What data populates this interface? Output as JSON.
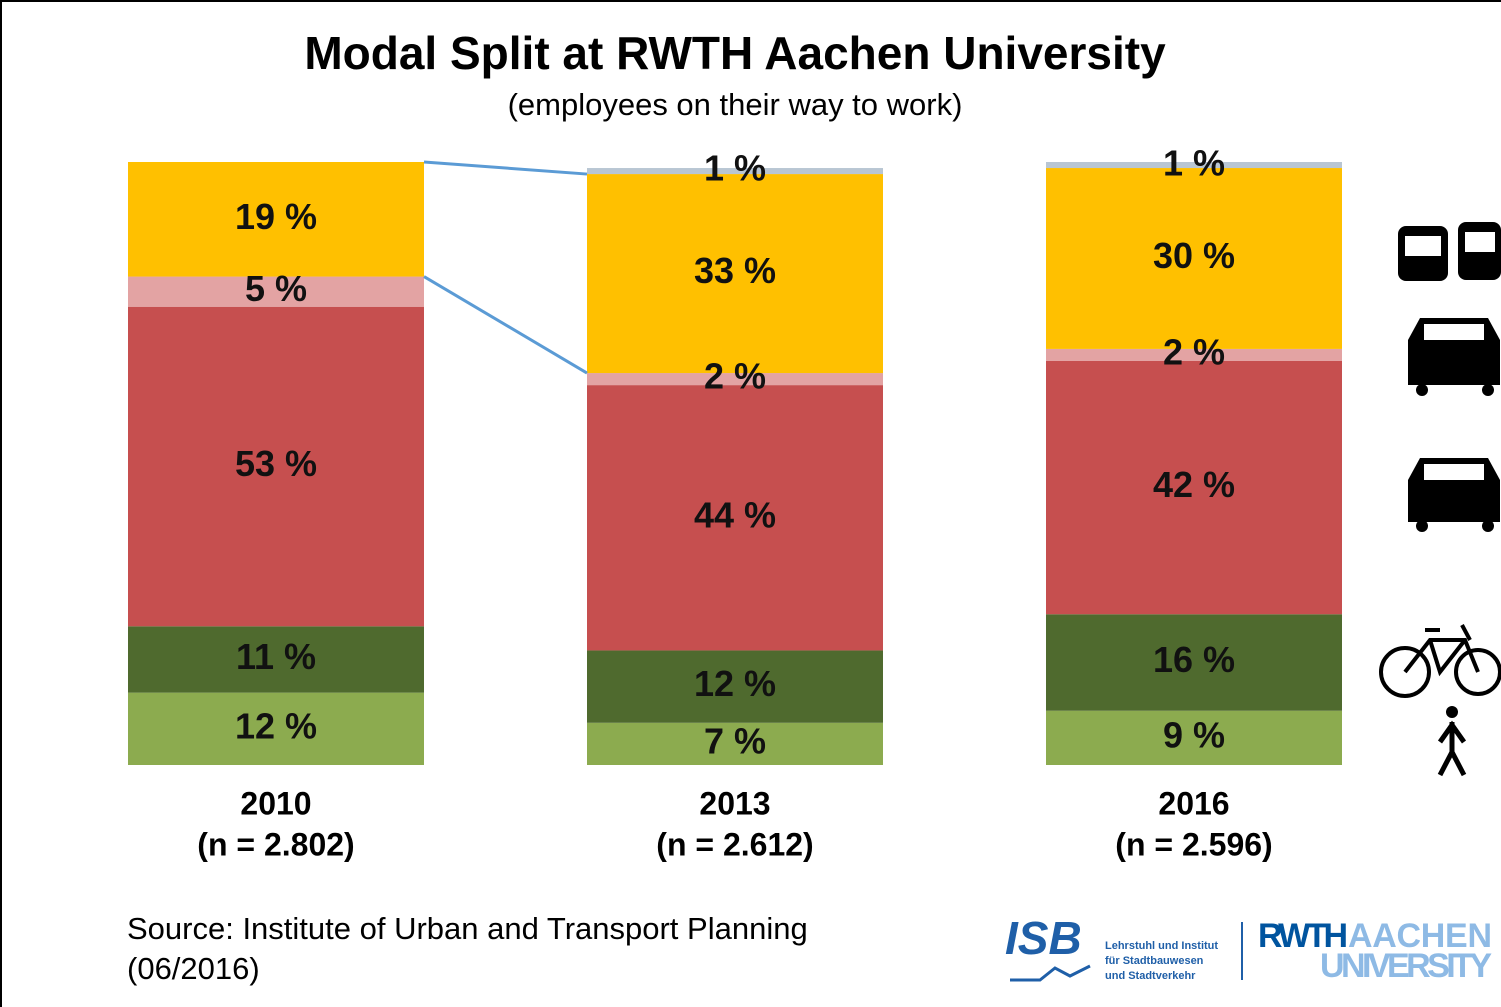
{
  "chart_data": {
    "type": "bar",
    "stacked": true,
    "title": "Modal Split at RWTH Aachen University",
    "subtitle": "(employees on their way to work)",
    "categories": [
      "2010",
      "2013",
      "2016"
    ],
    "category_notes": [
      "(n = 2.802)",
      "(n = 2.612)",
      "(n = 2.596)"
    ],
    "ylim": [
      0,
      100
    ],
    "series": [
      {
        "color": "#8cab4f",
        "values": [
          12,
          7,
          9
        ],
        "value_labels": [
          "12 %",
          "7 %",
          "9 %"
        ]
      },
      {
        "color": "#4f6a2e",
        "values": [
          11,
          12,
          16
        ],
        "value_labels": [
          "11 %",
          "12 %",
          "16 %"
        ]
      },
      {
        "color": "#c64f4f",
        "values": [
          53,
          44,
          42
        ],
        "value_labels": [
          "53 %",
          "44 %",
          "42 %"
        ]
      },
      {
        "color": "#e3a3a3",
        "values": [
          5,
          2,
          2
        ],
        "value_labels": [
          "5 %",
          "2 %",
          "2 %"
        ]
      },
      {
        "color": "#ffc000",
        "values": [
          19,
          33,
          30
        ],
        "value_labels": [
          "19 %",
          "33 %",
          "30 %"
        ]
      },
      {
        "color": "#b9c6d3",
        "values": [
          null,
          1,
          1
        ],
        "value_labels": [
          null,
          "1 %",
          "1 %"
        ]
      }
    ],
    "connector_color": "#5b9bd5"
  },
  "footer": {
    "source": [
      "Source: Institute of Urban and Transport Planning",
      "(06/2016)"
    ],
    "isb": {
      "name": "ISB",
      "lines": [
        "Lehrstuhl und Institut",
        "für Stadtbauwesen",
        "und Stadtverkehr"
      ]
    },
    "rwth": {
      "first": "RWTH",
      "second": "AACHEN",
      "third": "UNIVERSITY"
    }
  }
}
